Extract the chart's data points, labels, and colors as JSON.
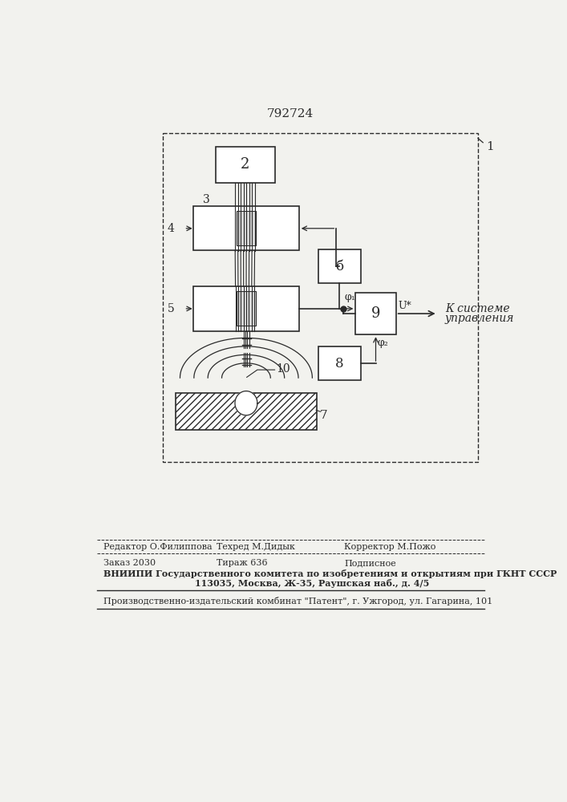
{
  "title": "792724",
  "bg_color": "#f2f2ee",
  "line_color": "#2a2a2a",
  "footer_line1a": "Редактор О.Филиппова",
  "footer_line1b": "Техред М.Дидык",
  "footer_line1c": "Корректор М.Пожо",
  "footer_line2a": "Заказ 2030",
  "footer_line2b": "Тираж 636",
  "footer_line2c": "Подписное",
  "footer_line3": "ВНИИПИ Государственного комитета по изобретениям и открытиям при ГКНТ СССР",
  "footer_line4": "113035, Москва, Ж-35, Раушская наб., д. 4/5",
  "footer_line5": "Производственно-издательский комбинат \"Патент\", г. Ужгород, ул. Гагарина, 101",
  "label1": "1",
  "label2": "2",
  "label3": "3",
  "label4": "4",
  "label5": "5",
  "label6": "б",
  "label7": "7",
  "label8": "8",
  "label9": "9",
  "label10": "10",
  "phi1": "φ₁",
  "phi2": "φ₂",
  "Ux": "U*",
  "control_text1": "К системе",
  "control_text2": "управления"
}
